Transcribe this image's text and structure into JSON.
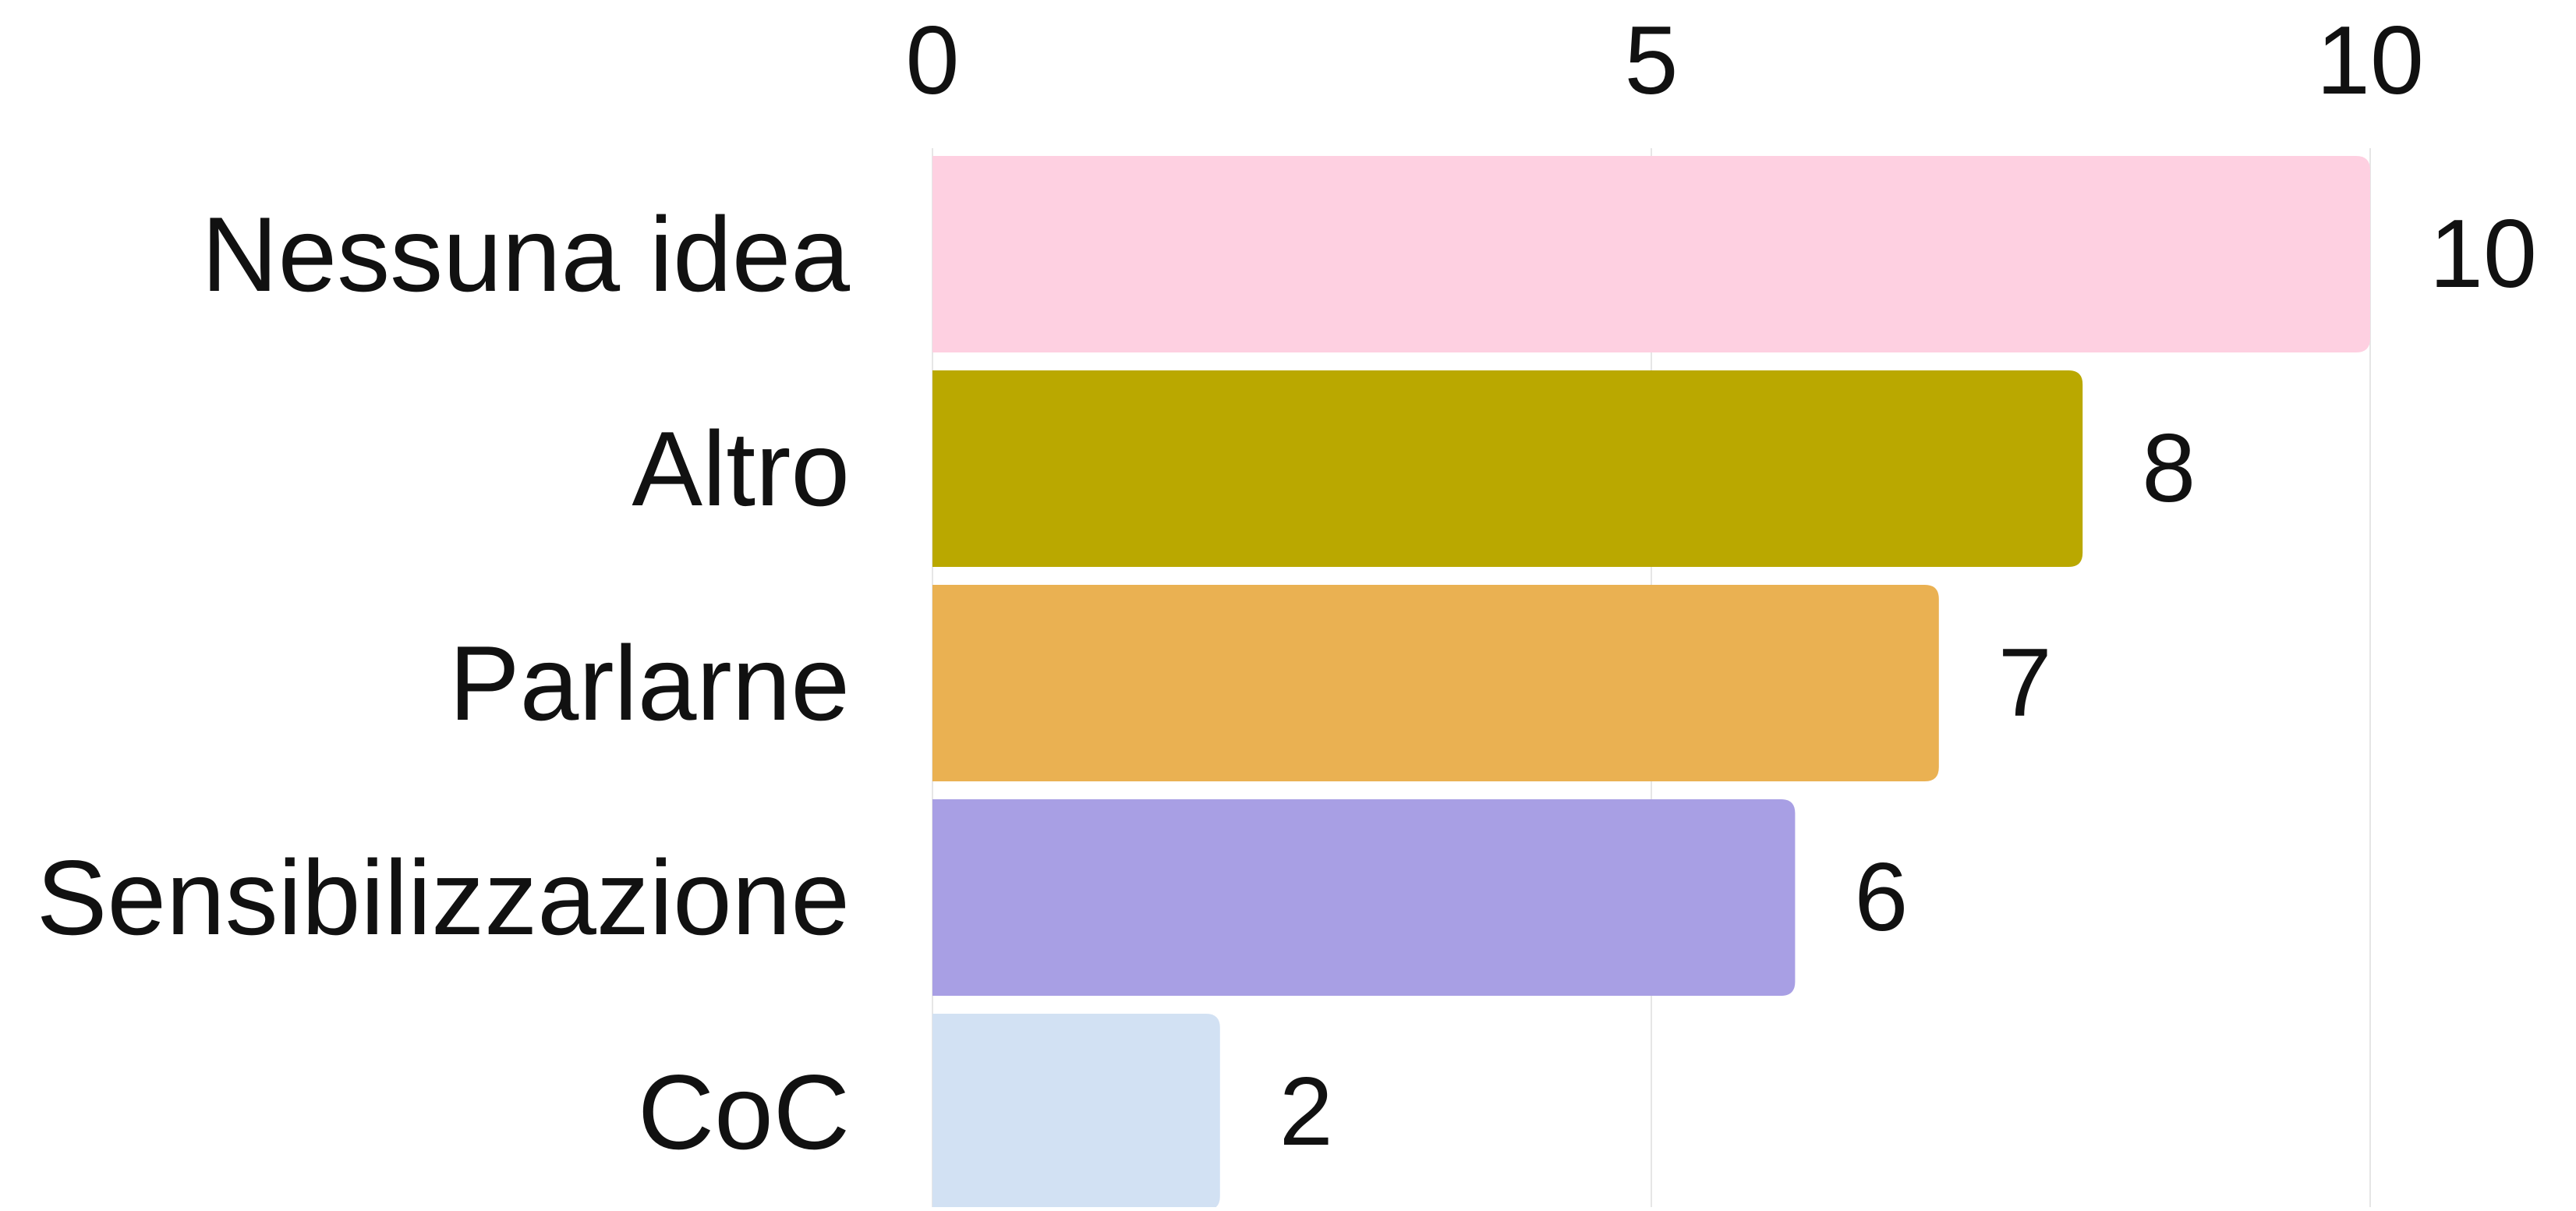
{
  "chart_data": {
    "type": "bar",
    "orientation": "horizontal",
    "categories": [
      "Nessuna idea",
      "Altro",
      "Parlarne",
      "Sensibilizzazione",
      "CoC"
    ],
    "values": [
      10,
      8,
      7,
      6,
      2
    ],
    "data_labels": [
      "10",
      "8",
      "7",
      "6",
      "2"
    ],
    "colors": [
      "#fed0e1",
      "#baa800",
      "#eab152",
      "#a89fe4",
      "#d2e1f3"
    ],
    "x_ticks": [
      0,
      5,
      10
    ],
    "x_tick_labels": [
      "0",
      "5",
      "10"
    ],
    "xlim": [
      0,
      10
    ],
    "x_axis_position": "top",
    "grid": true,
    "gridline_color": "#e6e6e6",
    "title": "",
    "xlabel": "",
    "ylabel": ""
  }
}
